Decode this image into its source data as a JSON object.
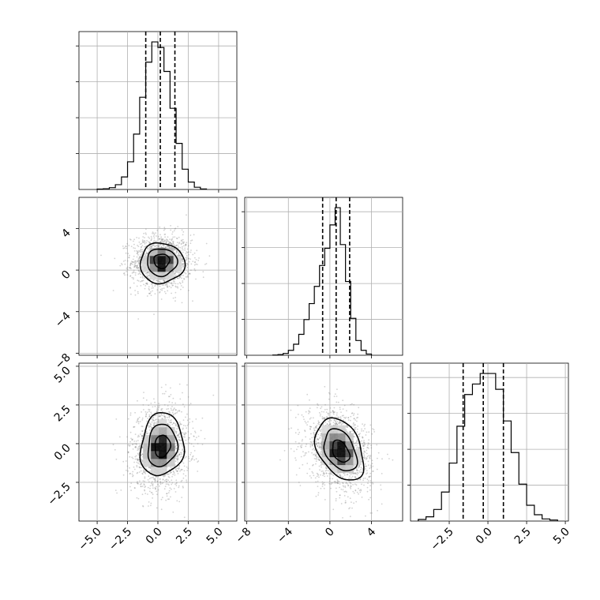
{
  "chart_data": {
    "type": "corner",
    "grid": true,
    "ticks": {
      "x0": [
        "−5.0",
        "−2.5",
        "0.0",
        "2.5",
        "5.0"
      ],
      "x1": [
        "−8",
        "−4",
        "0",
        "4"
      ],
      "x2": [
        "−2.5",
        "0.0",
        "2.5",
        "5.0"
      ],
      "y_row1": [
        "4",
        "0",
        "−4",
        "−8"
      ],
      "y_row2": [
        "5.0",
        "2.5",
        "0.0",
        "−2.5"
      ]
    },
    "variables": [
      {
        "range": [
          -6.5,
          6.5
        ],
        "quantiles": [
          -1.0,
          0.2,
          1.4
        ],
        "hist": {
          "edges": [
            -5.0,
            -4.5,
            -4.0,
            -3.5,
            -3.0,
            -2.5,
            -2.0,
            -1.5,
            -1.0,
            -0.5,
            0.0,
            0.5,
            1.0,
            1.5,
            2.0,
            2.5,
            3.0,
            3.5,
            4.0
          ],
          "counts": [
            2,
            4,
            10,
            26,
            68,
            150,
            300,
            500,
            690,
            800,
            770,
            640,
            440,
            250,
            110,
            40,
            12,
            3
          ]
        }
      },
      {
        "range": [
          -8.2,
          7.0
        ],
        "quantiles": [
          -0.7,
          0.6,
          1.9
        ],
        "hist": {
          "edges": [
            -5.5,
            -5.0,
            -4.5,
            -4.0,
            -3.5,
            -3.0,
            -2.5,
            -2.0,
            -1.5,
            -1.0,
            -0.5,
            0.0,
            0.5,
            1.0,
            1.5,
            2.0,
            2.5,
            3.0,
            3.5,
            4.0
          ],
          "counts": [
            2,
            6,
            15,
            40,
            90,
            170,
            290,
            420,
            560,
            730,
            870,
            1060,
            1200,
            900,
            600,
            300,
            120,
            40,
            10
          ]
        }
      },
      {
        "range": [
          -5.0,
          5.2
        ],
        "quantiles": [
          -1.6,
          -0.3,
          1.0
        ],
        "hist": {
          "edges": [
            -4.5,
            -4.0,
            -3.5,
            -3.0,
            -2.5,
            -2.0,
            -1.5,
            -1.0,
            -0.5,
            0.0,
            0.5,
            1.0,
            1.5,
            2.0,
            2.5,
            3.0,
            3.5,
            4.0,
            4.5
          ],
          "counts": [
            3,
            8,
            22,
            55,
            110,
            180,
            240,
            260,
            280,
            280,
            250,
            190,
            130,
            70,
            30,
            12,
            4,
            2
          ]
        }
      }
    ],
    "pairs": [
      {
        "xvar": 0,
        "yvar": 1,
        "center": [
          0.3,
          0.8
        ],
        "peak": [
          0.3,
          1.0
        ],
        "sx": [
          1.15,
          1.2
        ],
        "sy": [
          1.35,
          1.15
        ],
        "tilt": 0.0,
        "n": 1500
      },
      {
        "xvar": 0,
        "yvar": 2,
        "center": [
          0.2,
          -0.3
        ],
        "peak": [
          0.4,
          -0.2
        ],
        "sx": [
          1.05,
          1.25
        ],
        "sy": [
          1.15,
          1.45
        ],
        "tilt": 0.12,
        "n": 1500
      },
      {
        "xvar": 1,
        "yvar": 2,
        "center": [
          0.9,
          -0.4
        ],
        "peak": [
          1.1,
          -0.6
        ],
        "sx": [
          1.45,
          1.55
        ],
        "sy": [
          1.15,
          1.25
        ],
        "tilt": -0.32,
        "n": 1500
      }
    ]
  }
}
